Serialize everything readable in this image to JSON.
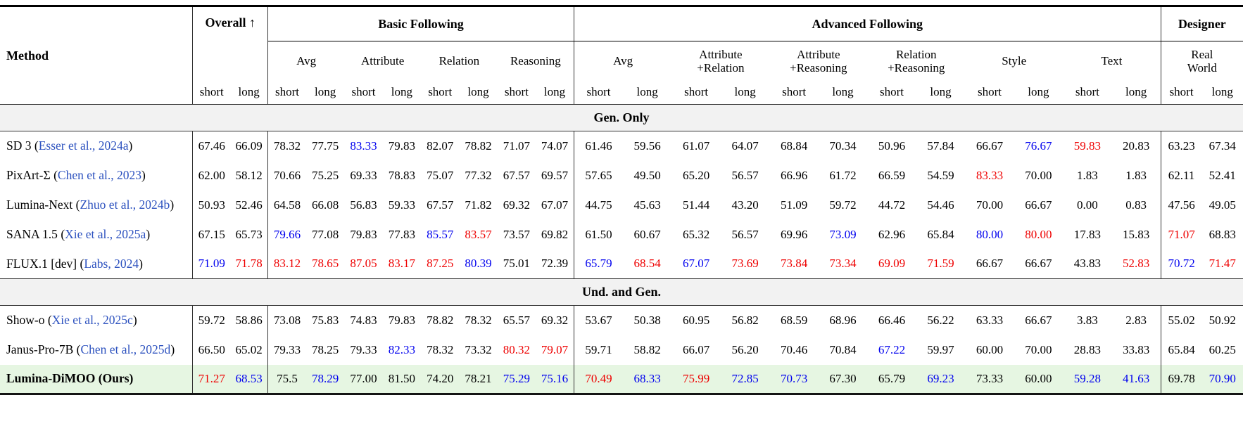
{
  "colors": {
    "best_red": "#ee0000",
    "second_blue": "#0000ee",
    "citation_blue": "#2d52bf",
    "section_band_bg": "#f2f2f2",
    "ours_row_bg": "#e6f6e2"
  },
  "table": {
    "header": {
      "method": "Method",
      "overall": "Overall ↑",
      "short_label": "short",
      "long_label": "long",
      "groups": [
        {
          "label": "Basic Following",
          "subs": [
            "Avg",
            "Attribute",
            "Relation",
            "Reasoning"
          ]
        },
        {
          "label": "Advanced Following",
          "subs": [
            "Avg",
            "Attribute\n+Relation",
            "Attribute\n+Reasoning",
            "Relation\n+Reasoning",
            "Style",
            "Text"
          ]
        },
        {
          "label": "Designer",
          "subs": [
            "Real\nWorld"
          ]
        }
      ]
    },
    "sections": [
      {
        "title": "Gen. Only",
        "rows": [
          {
            "method": "SD 3",
            "cite": "Esser et al., 2024a",
            "bold": false,
            "highlight": false,
            "values": [
              "67.46",
              "66.09",
              "78.32",
              "77.75",
              "83.33",
              "79.83",
              "82.07",
              "78.82",
              "71.07",
              "74.07",
              "61.46",
              "59.56",
              "61.07",
              "64.07",
              "68.84",
              "70.34",
              "50.96",
              "57.84",
              "66.67",
              "76.67",
              "59.83",
              "20.83",
              "63.23",
              "67.34"
            ],
            "colors": "kkkkbkkkkkkkkkkkkkkbrkkk"
          },
          {
            "method": "PixArt-Σ",
            "cite": "Chen et al., 2023",
            "bold": false,
            "highlight": false,
            "values": [
              "62.00",
              "58.12",
              "70.66",
              "75.25",
              "69.33",
              "78.83",
              "75.07",
              "77.32",
              "67.57",
              "69.57",
              "57.65",
              "49.50",
              "65.20",
              "56.57",
              "66.96",
              "61.72",
              "66.59",
              "54.59",
              "83.33",
              "70.00",
              "1.83",
              "1.83",
              "62.11",
              "52.41"
            ],
            "colors": "kkkkkkkkkkkkkkkkkkrkkkkk"
          },
          {
            "method": "Lumina-Next",
            "cite": "Zhuo et al., 2024b",
            "bold": false,
            "highlight": false,
            "values": [
              "50.93",
              "52.46",
              "64.58",
              "66.08",
              "56.83",
              "59.33",
              "67.57",
              "71.82",
              "69.32",
              "67.07",
              "44.75",
              "45.63",
              "51.44",
              "43.20",
              "51.09",
              "59.72",
              "44.72",
              "54.46",
              "70.00",
              "66.67",
              "0.00",
              "0.83",
              "47.56",
              "49.05"
            ],
            "colors": "kkkkkkkkkkkkkkkkkkkkkkkk"
          },
          {
            "method": "SANA 1.5",
            "cite": "Xie et al., 2025a",
            "bold": false,
            "highlight": false,
            "values": [
              "67.15",
              "65.73",
              "79.66",
              "77.08",
              "79.83",
              "77.83",
              "85.57",
              "83.57",
              "73.57",
              "69.82",
              "61.50",
              "60.67",
              "65.32",
              "56.57",
              "69.96",
              "73.09",
              "62.96",
              "65.84",
              "80.00",
              "80.00",
              "17.83",
              "15.83",
              "71.07",
              "68.83"
            ],
            "colors": "kkbkkkbrkkkkkkkbkkbrkkrk"
          },
          {
            "method": "FLUX.1 [dev]",
            "cite": "Labs, 2024",
            "bold": false,
            "highlight": false,
            "values": [
              "71.09",
              "71.78",
              "83.12",
              "78.65",
              "87.05",
              "83.17",
              "87.25",
              "80.39",
              "75.01",
              "72.39",
              "65.79",
              "68.54",
              "67.07",
              "73.69",
              "73.84",
              "73.34",
              "69.09",
              "71.59",
              "66.67",
              "66.67",
              "43.83",
              "52.83",
              "70.72",
              "71.47"
            ],
            "colors": "brrrrrrbkkbrbrrrrrkkkrbr"
          }
        ]
      },
      {
        "title": "Und. and Gen.",
        "rows": [
          {
            "method": "Show-o",
            "cite": "Xie et al., 2025c",
            "bold": false,
            "highlight": false,
            "values": [
              "59.72",
              "58.86",
              "73.08",
              "75.83",
              "74.83",
              "79.83",
              "78.82",
              "78.32",
              "65.57",
              "69.32",
              "53.67",
              "50.38",
              "60.95",
              "56.82",
              "68.59",
              "68.96",
              "66.46",
              "56.22",
              "63.33",
              "66.67",
              "3.83",
              "2.83",
              "55.02",
              "50.92"
            ],
            "colors": "kkkkkkkkkkkkkkkkkkkkkkkk"
          },
          {
            "method": "Janus-Pro-7B",
            "cite": "Chen et al., 2025d",
            "bold": false,
            "highlight": false,
            "values": [
              "66.50",
              "65.02",
              "79.33",
              "78.25",
              "79.33",
              "82.33",
              "78.32",
              "73.32",
              "80.32",
              "79.07",
              "59.71",
              "58.82",
              "66.07",
              "56.20",
              "70.46",
              "70.84",
              "67.22",
              "59.97",
              "60.00",
              "70.00",
              "28.83",
              "33.83",
              "65.84",
              "60.25"
            ],
            "colors": "kkkkkbkkrrkkkkkkbkkkkkkk"
          },
          {
            "method": "Lumina-DiMOO (Ours)",
            "cite": null,
            "bold": true,
            "highlight": true,
            "values": [
              "71.27",
              "68.53",
              "75.5",
              "78.29",
              "77.00",
              "81.50",
              "74.20",
              "78.21",
              "75.29",
              "75.16",
              "70.49",
              "68.33",
              "75.99",
              "72.85",
              "70.73",
              "67.30",
              "65.79",
              "69.23",
              "73.33",
              "60.00",
              "59.28",
              "41.63",
              "69.78",
              "70.90"
            ],
            "colors": "rbkbkkkkbbrbrbbkkbkkbbkb"
          }
        ]
      }
    ]
  }
}
